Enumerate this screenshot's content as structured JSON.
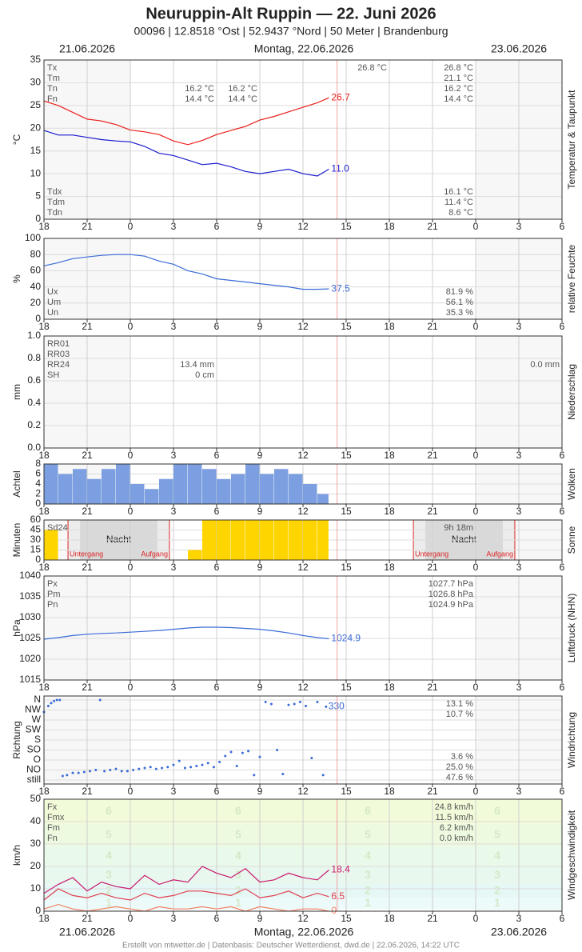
{
  "chart_data": {
    "title": "Neuruppin-Alt Ruppin  —  22. Juni 2026",
    "subtitle": "00096  |  12.8518 °Ost  |  52.9437 °Nord  |  50 Meter  |  Brandenburg",
    "dates": [
      "21.06.2026",
      "Montag, 22.06.2026",
      "23.06.2026"
    ],
    "footer": "Erstellt von mtwetter.de | Datenbasis: Deutscher Wetterdienst, dwd.de | 22.06.2026, 14:22 UTC",
    "xlim": [
      0,
      36
    ],
    "xticks": [
      {
        "value": 0,
        "label": "18"
      },
      {
        "value": 3,
        "label": "21"
      },
      {
        "value": 6,
        "label": "0"
      },
      {
        "value": 9,
        "label": "3"
      },
      {
        "value": 12,
        "label": "6"
      },
      {
        "value": 15,
        "label": "9"
      },
      {
        "value": 18,
        "label": "12"
      },
      {
        "value": 21,
        "label": "15"
      },
      {
        "value": 24,
        "label": "18"
      },
      {
        "value": 27,
        "label": "21"
      },
      {
        "value": 30,
        "label": "0"
      },
      {
        "value": 33,
        "label": "3"
      },
      {
        "value": 36,
        "label": "6"
      }
    ],
    "now": 20.37,
    "panels": [
      {
        "type": "line",
        "y_label": "°C",
        "side_label": "Temperatur & Taupunkt",
        "ylim": [
          0,
          35
        ],
        "yticks": [
          0,
          5,
          10,
          15,
          20,
          25,
          30,
          35
        ],
        "x": [
          0,
          1,
          2,
          3,
          4,
          5,
          6,
          7,
          8,
          9,
          10,
          11,
          12,
          13,
          14,
          15,
          16,
          17,
          18,
          19,
          19.8
        ],
        "series": [
          {
            "color": "#e8201a",
            "values": [
              26,
              25,
              23.5,
              22,
              21.6,
              20.8,
              19.6,
              19.2,
              18.6,
              17.2,
              16.4,
              17.3,
              18.6,
              19.5,
              20.4,
              21.8,
              22.6,
              23.6,
              24.6,
              25.6,
              26.7
            ],
            "end_label": "26.7"
          },
          {
            "color": "#1a1ad0",
            "values": [
              19.5,
              18.5,
              18.5,
              18,
              17.5,
              17.2,
              17,
              16,
              14.5,
              14,
              13,
              12,
              12.3,
              11.5,
              10.5,
              10,
              10.5,
              11,
              10,
              9.5,
              11.0
            ],
            "end_label": "11.0"
          }
        ],
        "stats": [
          {
            "position": "top",
            "labels": [
              "Tx",
              "Tm",
              "Tn",
              "Fn"
            ],
            "columns": [
              [
                null,
                null,
                "16.2 °C",
                "14.4 °C"
              ],
              [
                null,
                null,
                "16.2 °C",
                "14.4 °C"
              ],
              [
                "26.8 °C",
                null,
                null,
                null
              ],
              [
                "26.8 °C",
                "21.1 °C",
                "16.2 °C",
                "14.4 °C"
              ],
              null
            ]
          },
          {
            "position": "bottom",
            "labels": [
              "Tdx",
              "Tdm",
              "Tdn"
            ],
            "columns": [
              null,
              null,
              null,
              [
                "16.1 °C",
                "11.4 °C",
                "8.6 °C"
              ],
              null
            ]
          }
        ]
      },
      {
        "type": "line",
        "y_label": "%",
        "side_label": "relative Feuchte",
        "ylim": [
          0,
          100
        ],
        "yticks": [
          0,
          20,
          40,
          60,
          80,
          100
        ],
        "x": [
          0,
          1,
          2,
          3,
          4,
          5,
          6,
          7,
          8,
          9,
          10,
          11,
          12,
          13,
          14,
          15,
          16,
          17,
          18,
          19,
          19.8
        ],
        "series": [
          {
            "color": "#3a6bd6",
            "values": [
              66,
              70,
              75,
              77,
              79,
              80,
              80,
              78,
              72,
              68,
              60,
              56,
              50,
              48,
              46,
              44,
              42,
              40,
              37,
              37,
              37.5
            ],
            "end_label": "37.5"
          }
        ],
        "stats": [
          {
            "position": "bottom",
            "labels": [
              "Ux",
              "Um",
              "Un"
            ],
            "columns": [
              null,
              null,
              null,
              [
                "81.9 %",
                "56.1 %",
                "35.3 %"
              ],
              null
            ]
          }
        ]
      },
      {
        "type": "bar",
        "y_label": "mm",
        "side_label": "Niederschlag",
        "ylim": [
          0,
          1
        ],
        "yticks": [
          {
            "value": 0,
            "label": "0.0"
          },
          {
            "value": 0.2,
            "label": "0.2"
          },
          {
            "value": 0.4,
            "label": "0.4"
          },
          {
            "value": 0.6,
            "label": "0.6"
          },
          {
            "value": 0.8,
            "label": "0.8"
          },
          {
            "value": 1,
            "label": "1.0"
          }
        ],
        "stats": [
          {
            "position": "top",
            "labels": [
              "RR01",
              "RR03",
              "RR24",
              "SH"
            ],
            "columns": [
              [
                null,
                null,
                "13.4 mm",
                "0 cm"
              ],
              null,
              null,
              null,
              [
                null,
                null,
                "0.0 mm",
                null
              ]
            ]
          }
        ]
      },
      {
        "type": "bar",
        "y_label": "Achtel",
        "side_label": "Wolken",
        "ylim": [
          0,
          8
        ],
        "yticks": [
          0,
          2,
          4,
          6,
          8
        ],
        "bins": [
          0,
          1,
          2,
          3,
          4,
          5,
          6,
          7,
          8,
          9,
          10,
          11,
          12,
          13,
          14,
          15,
          16,
          17,
          18,
          19,
          19.8
        ],
        "series": [
          {
            "color": "#7b9fe0",
            "values": [
              8,
              6,
              7,
              5,
              7,
              8,
              4,
              3,
              5,
              8,
              8,
              7,
              5,
              6,
              8,
              6,
              7,
              6,
              4,
              2
            ]
          }
        ]
      },
      {
        "type": "bar",
        "y_label": "Minuten",
        "side_label": "Sonne",
        "ylim": [
          0,
          60
        ],
        "yticks": [
          0,
          15,
          30,
          45,
          60
        ],
        "bins": [
          0,
          1,
          2,
          3,
          4,
          5,
          6,
          7,
          8,
          9,
          10,
          11,
          12,
          13,
          14,
          15,
          16,
          17,
          18,
          19,
          19.8
        ],
        "series": [
          {
            "color": "#ffd500",
            "values": [
              45,
              0,
              0,
              0,
              0,
              0,
              0,
              0,
              0,
              0,
              15,
              60,
              60,
              60,
              60,
              60,
              60,
              60,
              60,
              60
            ]
          }
        ],
        "nights": [
          {
            "sunset": 1.67,
            "sunrise": 8.72
          },
          {
            "sunset": 25.67,
            "sunrise": 32.72
          }
        ],
        "night_label": "Nacht",
        "sunset_label": "Untergang",
        "sunrise_label": "Aufgang",
        "stats": [
          {
            "position": "top",
            "labels": [
              "Sd24"
            ],
            "columns": [
              null,
              null,
              null,
              [
                "9h 18m"
              ],
              null
            ]
          }
        ]
      },
      {
        "type": "line",
        "y_label": "hPa",
        "side_label": "Luftdruck (NHN)",
        "ylim": [
          1015,
          1040
        ],
        "yticks": [
          1015,
          1020,
          1025,
          1030,
          1035,
          1040
        ],
        "x": [
          0,
          1,
          2,
          3,
          4,
          5,
          6,
          7,
          8,
          9,
          10,
          11,
          12,
          13,
          14,
          15,
          16,
          17,
          18,
          19,
          19.8
        ],
        "series": [
          {
            "color": "#3a6bd6",
            "values": [
              1024.8,
              1025.2,
              1025.7,
              1026,
              1026.2,
              1026.3,
              1026.5,
              1026.7,
              1026.9,
              1027.2,
              1027.5,
              1027.7,
              1027.7,
              1027.6,
              1027.4,
              1027.2,
              1026.8,
              1026.3,
              1025.7,
              1025.2,
              1024.9
            ],
            "end_label": "1024.9"
          }
        ],
        "stats": [
          {
            "position": "top",
            "labels": [
              "Px",
              "Pm",
              "Pn"
            ],
            "columns": [
              null,
              null,
              null,
              [
                "1027.7 hPa",
                "1026.8 hPa",
                "1024.9 hPa"
              ],
              null
            ]
          }
        ]
      },
      {
        "type": "scatter",
        "y_label": "Richtung",
        "side_label": "Windrichtung",
        "ylim": [
          -18,
          378
        ],
        "yticks": [
          {
            "value": 0,
            "label": "still"
          },
          {
            "value": 45,
            "label": "NO"
          },
          {
            "value": 90,
            "label": "O"
          },
          {
            "value": 135,
            "label": "SO"
          },
          {
            "value": 180,
            "label": "S"
          },
          {
            "value": 225,
            "label": "SW"
          },
          {
            "value": 270,
            "label": "W"
          },
          {
            "value": 315,
            "label": "NW"
          },
          {
            "value": 360,
            "label": "N"
          }
        ],
        "x": [
          0,
          0.3,
          0.5,
          0.7,
          0.9,
          1.1,
          1.3,
          1.6,
          2.0,
          2.4,
          2.8,
          3.2,
          3.6,
          3.9,
          4.2,
          4.6,
          5.0,
          5.4,
          5.8,
          6.2,
          6.6,
          7.0,
          7.4,
          7.8,
          8.2,
          8.6,
          9.0,
          9.4,
          9.8,
          10.2,
          10.6,
          11.0,
          11.4,
          11.8,
          12.2,
          12.6,
          13.0,
          13.4,
          13.8,
          14.2,
          14.6,
          15.0,
          15.4,
          15.8,
          16.2,
          16.6,
          17.0,
          17.4,
          17.8,
          18.2,
          18.6,
          19.0,
          19.4,
          19.6
        ],
        "series": [
          {
            "color": "#3a6bd6",
            "values": [
              306,
              333,
              346,
              355,
              360,
              360,
              18,
              22,
              32,
              32,
              36,
              40,
              45,
              360,
              40,
              45,
              50,
              40,
              40,
              45,
              50,
              54,
              58,
              50,
              54,
              58,
              68,
              86,
              54,
              58,
              63,
              68,
              76,
              58,
              81,
              108,
              126,
              63,
              122,
              130,
              22,
              104,
              351,
              342,
              135,
              27,
              338,
              342,
              351,
              333,
              99,
              351,
              22,
              330
            ],
            "end_label": "330"
          }
        ],
        "stats": [
          {
            "position": "top",
            "labels": [
              null,
              null
            ],
            "columns": [
              null,
              null,
              null,
              [
                "13.1 %",
                "10.7 %"
              ],
              null
            ]
          },
          {
            "position": "bottom",
            "labels": [
              null,
              null,
              null
            ],
            "columns": [
              null,
              null,
              null,
              [
                "3.6 %",
                "25.0 %",
                "47.6 %"
              ],
              null
            ]
          }
        ]
      },
      {
        "type": "line",
        "y_label": "km/h",
        "side_label": "Windgeschwindigkeit",
        "ylim": [
          0,
          50
        ],
        "yticks": [
          0,
          10,
          20,
          30,
          40,
          50
        ],
        "beaufort": [
          {
            "label": "1",
            "from": 1,
            "to": 6,
            "color": "#ecfafa"
          },
          {
            "label": "2",
            "from": 6,
            "to": 12,
            "color": "#e6f8f6"
          },
          {
            "label": "3",
            "from": 12,
            "to": 20,
            "color": "#e8f8ee"
          },
          {
            "label": "4",
            "from": 20,
            "to": 29,
            "color": "#eafaea"
          },
          {
            "label": "5",
            "from": 29,
            "to": 39,
            "color": "#eefadf"
          },
          {
            "label": "6",
            "from": 39,
            "to": 50,
            "color": "#f2fbd9"
          }
        ],
        "x": [
          0,
          1,
          2,
          3,
          4,
          5,
          6,
          7,
          8,
          9,
          10,
          11,
          12,
          13,
          14,
          15,
          16,
          17,
          18,
          19,
          19.8
        ],
        "series": [
          {
            "color": "#c8186e",
            "values": [
              8,
              12,
              15,
              9,
              13,
              11,
              10,
              16,
              12,
              14,
              13,
              20,
              17,
              15,
              19,
              13,
              14,
              17,
              15,
              14,
              18.4
            ],
            "end_label": "18.4"
          },
          {
            "color": "#e04050",
            "values": [
              5,
              10,
              7,
              6,
              8,
              6,
              5,
              8,
              6,
              7,
              9,
              9,
              8,
              7,
              10,
              6,
              7,
              9,
              6,
              8,
              6.5
            ],
            "end_label": "6.5"
          },
          {
            "color": "#f08060",
            "values": [
              1,
              3,
              1,
              0,
              1,
              2,
              1,
              0,
              2,
              1,
              1,
              2,
              1,
              2,
              0,
              2,
              1,
              0,
              1,
              1,
              0
            ],
            "end_label": "0"
          }
        ],
        "stats": [
          {
            "position": "top",
            "labels": [
              "Fx",
              "Fmx",
              "Fm",
              "Fn"
            ],
            "columns": [
              null,
              null,
              null,
              [
                "24.8 km/h",
                "11.5 km/h",
                "6.2 km/h",
                "0.0 km/h"
              ],
              null
            ]
          }
        ]
      }
    ]
  }
}
